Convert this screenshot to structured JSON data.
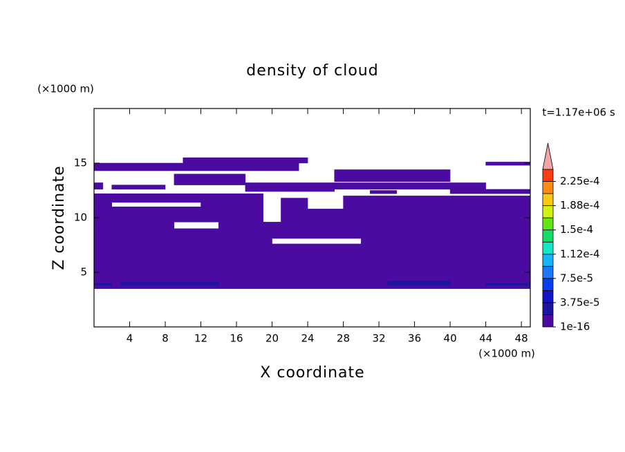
{
  "chart_data": {
    "type": "contour",
    "title": "density of cloud",
    "x_label": "X coordinate",
    "y_label": "Z coordinate",
    "x_unit": "(×1000 m)",
    "y_unit": "(×1000 m)",
    "time_label": "t=1.17e+06 s",
    "xlim": [
      0,
      49
    ],
    "ylim": [
      0,
      20
    ],
    "xticks": [
      4,
      8,
      12,
      16,
      20,
      24,
      28,
      32,
      36,
      40,
      44,
      48
    ],
    "yticks": [
      5,
      10,
      15
    ],
    "colorbar": {
      "levels": [
        1e-16,
        1.875e-05,
        3.75e-05,
        5.625e-05,
        7.5e-05,
        9.375e-05,
        0.0001125,
        0.00013125,
        0.00015,
        0.00016875,
        0.0001875,
        0.00020625,
        0.000225,
        0.00024375
      ],
      "colors": [
        "#4b0aa0",
        "#1e14a0",
        "#1414c8",
        "#0a3cf0",
        "#1e78ff",
        "#14b4ff",
        "#14e6c8",
        "#14dc64",
        "#64e614",
        "#d2f014",
        "#ffc814",
        "#ff8c14",
        "#ff3c14"
      ],
      "extend_color": "#f4a6a6",
      "ticks": [
        {
          "value": 1e-16,
          "label": "1e-16"
        },
        {
          "value": 3.75e-05,
          "label": "3.75e-5"
        },
        {
          "value": 7.5e-05,
          "label": "7.5e-5"
        },
        {
          "value": 0.0001125,
          "label": "1.12e-4"
        },
        {
          "value": 0.00015,
          "label": "1.5e-4"
        },
        {
          "value": 0.0001875,
          "label": "1.88e-4"
        },
        {
          "value": 0.000225,
          "label": "2.25e-4"
        }
      ]
    },
    "regions": [
      {
        "x": [
          0,
          49
        ],
        "z": [
          3.5,
          7.6
        ],
        "level": 0
      },
      {
        "x": [
          0,
          20
        ],
        "z": [
          7.6,
          8.1
        ],
        "level": 0
      },
      {
        "x": [
          30,
          49
        ],
        "z": [
          7.6,
          8.1
        ],
        "level": 0
      },
      {
        "x": [
          0,
          49
        ],
        "z": [
          8.1,
          9.0
        ],
        "level": 0
      },
      {
        "x": [
          0,
          9
        ],
        "z": [
          9.0,
          9.6
        ],
        "level": 0
      },
      {
        "x": [
          14,
          49
        ],
        "z": [
          9.0,
          9.6
        ],
        "level": 0
      },
      {
        "x": [
          0,
          19
        ],
        "z": [
          9.6,
          11.0
        ],
        "level": 0
      },
      {
        "x": [
          0,
          2
        ],
        "z": [
          11.0,
          11.4
        ],
        "level": 0
      },
      {
        "x": [
          12,
          19
        ],
        "z": [
          11.0,
          11.4
        ],
        "level": 0
      },
      {
        "x": [
          0,
          19
        ],
        "z": [
          11.4,
          12.2
        ],
        "level": 0
      },
      {
        "x": [
          21,
          24
        ],
        "z": [
          9.6,
          11.8
        ],
        "level": 0
      },
      {
        "x": [
          24,
          28
        ],
        "z": [
          9.6,
          10.8
        ],
        "level": 0
      },
      {
        "x": [
          28,
          49
        ],
        "z": [
          9.6,
          12.0
        ],
        "level": 0
      },
      {
        "x": [
          0,
          23
        ],
        "z": [
          14.3,
          15.0
        ],
        "level": 0
      },
      {
        "x": [
          10,
          24
        ],
        "z": [
          15.0,
          15.5
        ],
        "level": 0
      },
      {
        "x": [
          9,
          17
        ],
        "z": [
          13.0,
          14.0
        ],
        "level": 0
      },
      {
        "x": [
          0,
          1
        ],
        "z": [
          12.6,
          13.2
        ],
        "level": 0
      },
      {
        "x": [
          2,
          8
        ],
        "z": [
          12.6,
          13.0
        ],
        "level": 0
      },
      {
        "x": [
          17,
          27
        ],
        "z": [
          12.4,
          13.2
        ],
        "level": 0
      },
      {
        "x": [
          27,
          40
        ],
        "z": [
          13.3,
          14.4
        ],
        "level": 0
      },
      {
        "x": [
          27,
          44
        ],
        "z": [
          12.6,
          13.2
        ],
        "level": 0
      },
      {
        "x": [
          44,
          49
        ],
        "z": [
          14.8,
          15.1
        ],
        "level": 0
      },
      {
        "x": [
          40,
          49
        ],
        "z": [
          12.2,
          12.6
        ],
        "level": 0
      },
      {
        "x": [
          31,
          34
        ],
        "z": [
          12.2,
          12.5
        ],
        "level": 0
      },
      {
        "x": [
          0,
          2
        ],
        "z": [
          3.8,
          4.0
        ],
        "level": 1
      },
      {
        "x": [
          3,
          14
        ],
        "z": [
          3.8,
          4.1
        ],
        "level": 1
      },
      {
        "x": [
          33,
          40
        ],
        "z": [
          3.8,
          4.2
        ],
        "level": 1
      },
      {
        "x": [
          44,
          49
        ],
        "z": [
          3.8,
          4.0
        ],
        "level": 1
      }
    ]
  }
}
